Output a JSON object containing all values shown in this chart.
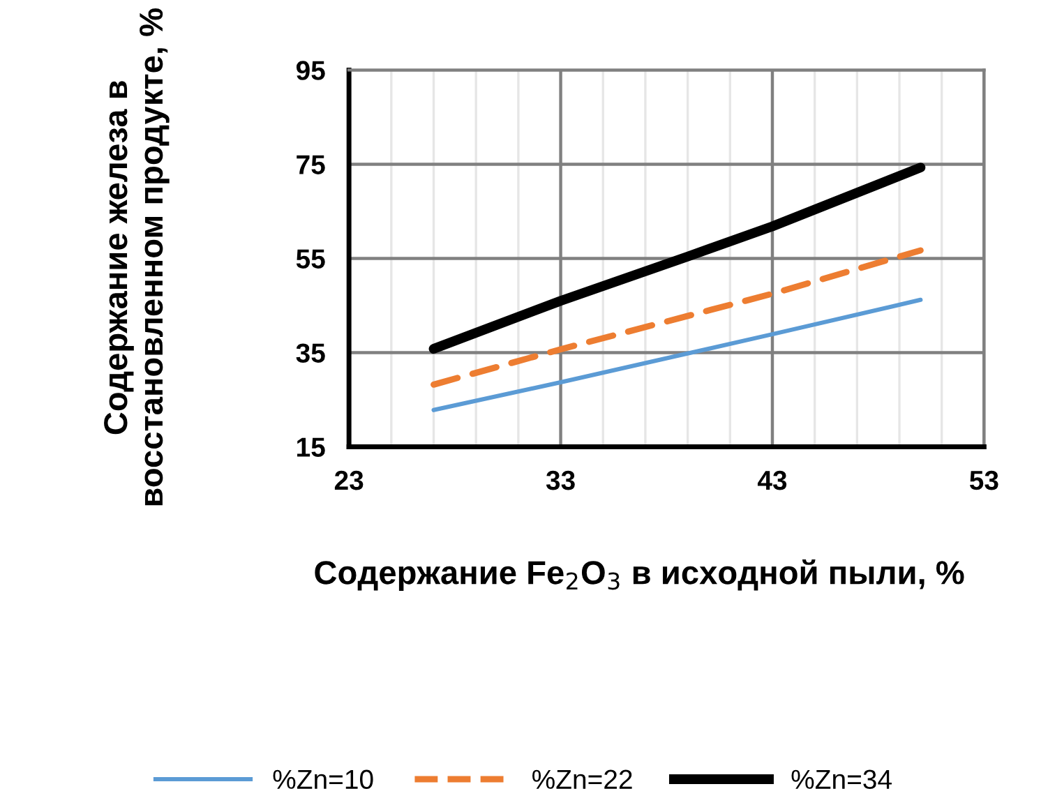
{
  "chart_data": {
    "type": "line",
    "xlabel": "Содержание Fe$_{2}$O$_{3}$ в исходной пыли, %",
    "ylabel": "Содержание железа в восстановленном продукте, %",
    "series": [
      {
        "name": "%Zn=10",
        "color": "#5b9bd5",
        "line_style": "solid",
        "x": [
          27,
          33,
          43,
          50
        ],
        "values": [
          22.8,
          28.7,
          38.9,
          46.2
        ]
      },
      {
        "name": "%Zn=22",
        "color": "#ed7d31",
        "line_style": "dashed",
        "x": [
          27,
          33,
          43,
          50
        ],
        "values": [
          28.2,
          35.7,
          47.5,
          56.7
        ]
      },
      {
        "name": "%Zn=34",
        "color": "#000000",
        "line_style": "solid",
        "x": [
          27,
          33,
          39,
          43,
          50
        ],
        "values": [
          35.8,
          46.0,
          55.4,
          61.8,
          74.3
        ]
      }
    ],
    "xlim": [
      23,
      53
    ],
    "ylim": [
      15,
      95
    ],
    "xticks": [
      23,
      {
        "value": 25,
        "label": null
      },
      {
        "value": 27,
        "label": null
      },
      {
        "value": 29,
        "label": null
      },
      {
        "value": 31,
        "label": null
      },
      33,
      {
        "value": 35,
        "label": null
      },
      {
        "value": 37,
        "label": null
      },
      {
        "value": 39,
        "label": null
      },
      {
        "value": 41,
        "label": null
      },
      43,
      {
        "value": 45,
        "label": null
      },
      {
        "value": 47,
        "label": null
      },
      {
        "value": 49,
        "label": null
      },
      {
        "value": 51,
        "label": null
      },
      53
    ],
    "yticks": [
      15,
      35,
      55,
      75,
      95
    ],
    "grid": true,
    "legend": "bottom",
    "marker": "none"
  }
}
